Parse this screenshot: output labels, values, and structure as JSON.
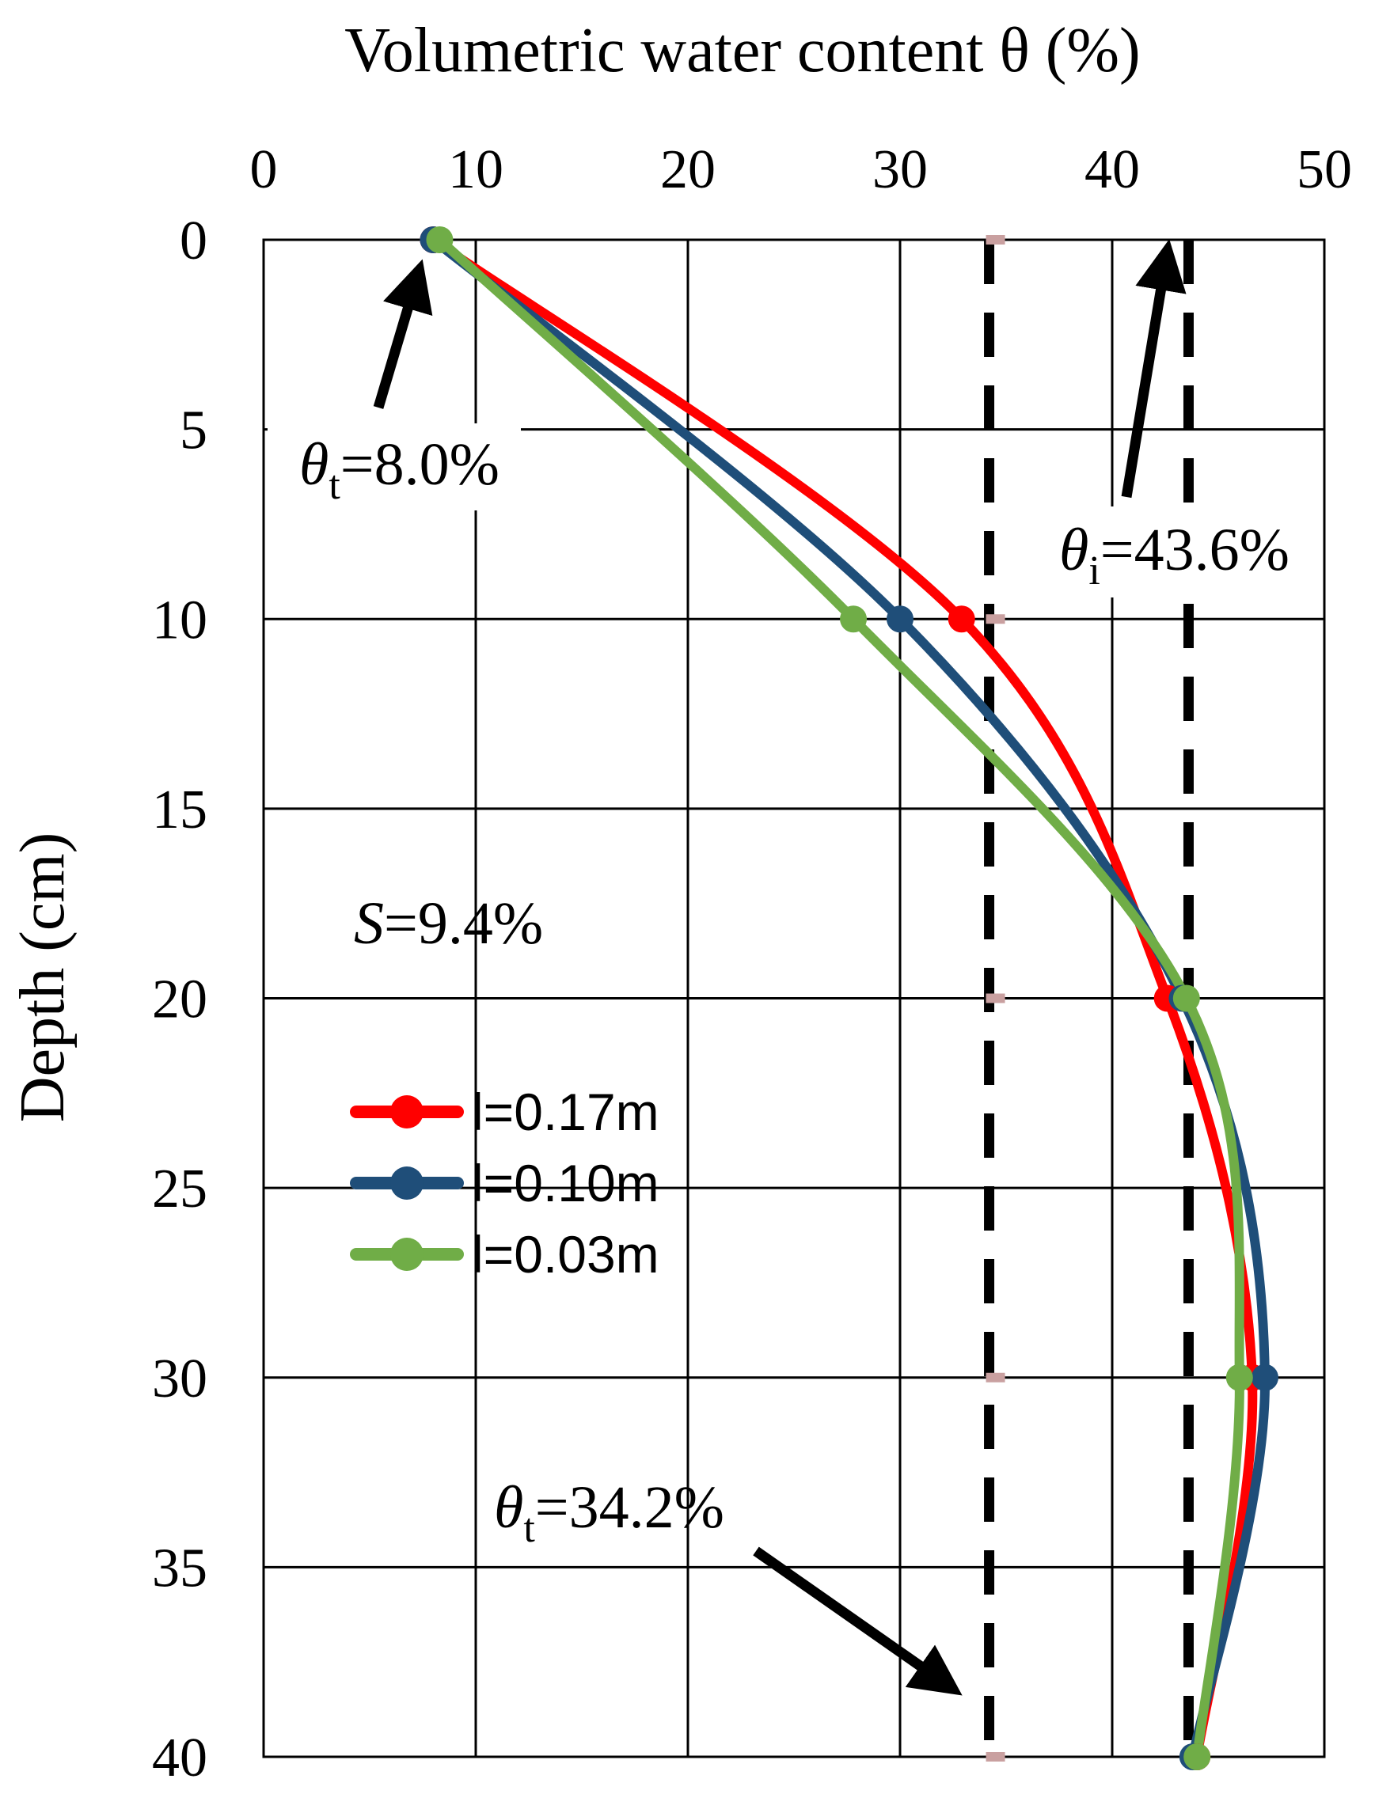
{
  "chart_data": {
    "type": "line",
    "title": "",
    "xlabel": "Volumetric water content θ  (%)",
    "ylabel": "Depth  (cm)",
    "xlim": [
      0,
      50
    ],
    "ylim": [
      0,
      40
    ],
    "x_ticks": [
      "0",
      "10",
      "20",
      "30",
      "40",
      "50"
    ],
    "y_ticks": [
      "0",
      "5",
      "10",
      "15",
      "20",
      "25",
      "30",
      "35",
      "40"
    ],
    "x_axis_position": "top",
    "y_axis_inverted": true,
    "grid": true,
    "series": [
      {
        "name": "l=0.17m",
        "color": "#ff0000",
        "x": [
          8.0,
          32.9,
          42.6,
          46.6,
          44.0
        ],
        "depth": [
          0,
          10,
          20,
          30,
          40
        ]
      },
      {
        "name": "l=0.10m",
        "color": "#1f4e79",
        "x": [
          8.0,
          30.0,
          43.3,
          47.2,
          43.8
        ],
        "depth": [
          0,
          10,
          20,
          30,
          40
        ]
      },
      {
        "name": "l=0.03m",
        "color": "#70ad47",
        "x": [
          8.3,
          27.8,
          43.5,
          46.0,
          44.0
        ],
        "depth": [
          0,
          10,
          20,
          30,
          40
        ]
      }
    ],
    "reference_lines": [
      {
        "x": 34.2,
        "style": "dashed",
        "color": "#000000"
      },
      {
        "x": 43.6,
        "style": "dashed",
        "color": "#000000"
      }
    ],
    "annotations": [
      {
        "symbol": "θ",
        "sub": "t",
        "text": "=8.0%",
        "points_to": [
          8.0,
          0
        ]
      },
      {
        "symbol": "θ",
        "sub": "i",
        "text": "=43.6%",
        "points_to": [
          43.6,
          0
        ]
      },
      {
        "symbol": "S",
        "sub": "",
        "text": "=9.4%"
      },
      {
        "symbol": "θ",
        "sub": "t",
        "text": "=34.2%",
        "points_to": [
          34.2,
          40
        ]
      }
    ],
    "legend_position": "middle-left"
  }
}
